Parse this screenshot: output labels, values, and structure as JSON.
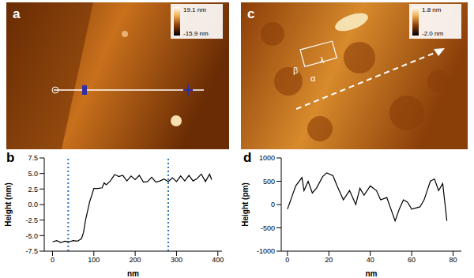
{
  "chart_data": [
    {
      "type": "image",
      "panel": "a",
      "colorbar_ticks": [
        {
          "value": 19.1,
          "label": "19.1 nm"
        },
        {
          "value": -15.9,
          "label": "-15.9 nm"
        }
      ]
    },
    {
      "type": "line",
      "panel": "b",
      "x_label": "nm",
      "y_label": "Height (nm)",
      "color": "#000000",
      "x": [
        0,
        10,
        20,
        30,
        40,
        50,
        60,
        70,
        75,
        80,
        85,
        90,
        95,
        100,
        110,
        120,
        125,
        130,
        140,
        150,
        155,
        160,
        170,
        180,
        190,
        200,
        210,
        220,
        230,
        240,
        250,
        260,
        270,
        280,
        290,
        300,
        310,
        320,
        330,
        340,
        350,
        360,
        370,
        380,
        385
      ],
      "values": [
        -6,
        -5.8,
        -6.1,
        -5.9,
        -6,
        -5.8,
        -5.9,
        -5.5,
        -4.5,
        -2.5,
        -1,
        0.5,
        1.5,
        2.6,
        2.6,
        2.7,
        3.5,
        3.2,
        3.8,
        4.8,
        4.7,
        4.5,
        4.7,
        3.8,
        4.6,
        4.0,
        4.7,
        3.6,
        3.7,
        4.4,
        3.6,
        3.8,
        4.1,
        3.7,
        4.3,
        3.7,
        4.6,
        3.8,
        4.7,
        3.8,
        4.2,
        4.9,
        3.7,
        4.9,
        4.0
      ],
      "xlim": [
        -20,
        410
      ],
      "xticks": [
        0,
        100,
        200,
        300,
        400
      ],
      "ylim": [
        -7.5,
        7.5
      ],
      "yticks": [
        -7.5,
        {
          "value": -5,
          "label": "-5.0"
        },
        -2.5,
        {
          "value": 0,
          "label": "0.0"
        },
        2.5,
        {
          "value": 5,
          "label": "5.0"
        },
        7.5
      ],
      "reference_lines": {
        "x": [
          38,
          280
        ],
        "color": "#2f6fc0",
        "line_style": "dotted"
      }
    },
    {
      "type": "image",
      "panel": "c",
      "colorbar_ticks": [
        {
          "value": 1.8,
          "label": "1.8 nm"
        },
        {
          "value": -2.0,
          "label": "-2.0 nm"
        }
      ],
      "annotations": [
        "β",
        "λ",
        "α"
      ]
    },
    {
      "type": "line",
      "panel": "d",
      "x_label": "nm",
      "y_label": "Height (pm)",
      "color": "#000000",
      "x": [
        0,
        2,
        4,
        7,
        8,
        10,
        12,
        14,
        17,
        19,
        22,
        24,
        27,
        30,
        33,
        35,
        37,
        40,
        43,
        45,
        48,
        52,
        54,
        56,
        58,
        60,
        64,
        66,
        69,
        71,
        73,
        75,
        77
      ],
      "values": [
        -100,
        150,
        400,
        580,
        300,
        500,
        250,
        350,
        600,
        680,
        620,
        400,
        100,
        300,
        0,
        350,
        200,
        400,
        300,
        100,
        150,
        -350,
        -100,
        100,
        50,
        -100,
        -50,
        100,
        500,
        550,
        300,
        450,
        -350
      ],
      "xlim": [
        -3,
        84
      ],
      "xticks": [
        0,
        20,
        40,
        60,
        80
      ],
      "ylim": [
        -1000,
        1000
      ],
      "yticks": [
        -1000,
        -500,
        0,
        500,
        1000
      ]
    }
  ]
}
